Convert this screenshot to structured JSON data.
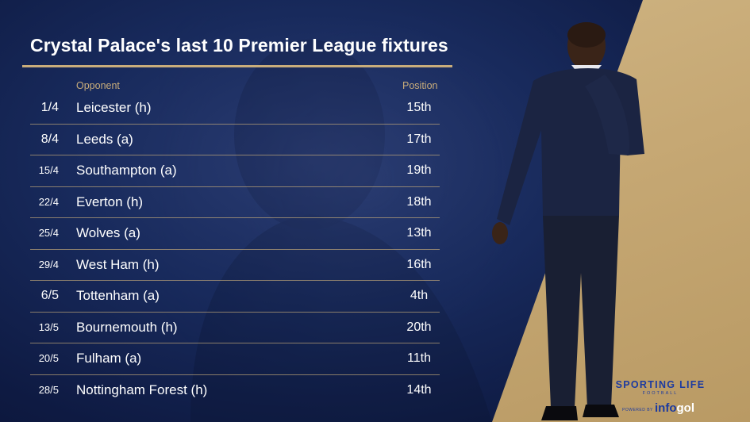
{
  "title": "Crystal Palace's last 10 Premier League fixtures",
  "headers": {
    "opponent": "Opponent",
    "position": "Position"
  },
  "fixtures": [
    {
      "date": "1/4",
      "opponent": "Leicester (h)",
      "position": "15th"
    },
    {
      "date": "8/4",
      "opponent": "Leeds (a)",
      "position": "17th"
    },
    {
      "date": "15/4",
      "opponent": "Southampton (a)",
      "position": "19th"
    },
    {
      "date": "22/4",
      "opponent": "Everton (h)",
      "position": "18th"
    },
    {
      "date": "25/4",
      "opponent": "Wolves (a)",
      "position": "13th"
    },
    {
      "date": "29/4",
      "opponent": "West Ham (h)",
      "position": "16th"
    },
    {
      "date": "6/5",
      "opponent": "Tottenham (a)",
      "position": "4th"
    },
    {
      "date": "13/5",
      "opponent": "Bournemouth (h)",
      "position": "20th"
    },
    {
      "date": "20/5",
      "opponent": "Fulham (a)",
      "position": "11th"
    },
    {
      "date": "28/5",
      "opponent": "Nottingham Forest (h)",
      "position": "14th"
    }
  ],
  "logo": {
    "main": "SPORTING LIFE",
    "sub": "FOOTBALL",
    "powered": "POWERED BY",
    "brand_a": "info",
    "brand_b": "gol"
  },
  "colors": {
    "navy": "#0f1c44",
    "gold": "#c9ad7b",
    "logo_blue": "#1c3aa0"
  }
}
